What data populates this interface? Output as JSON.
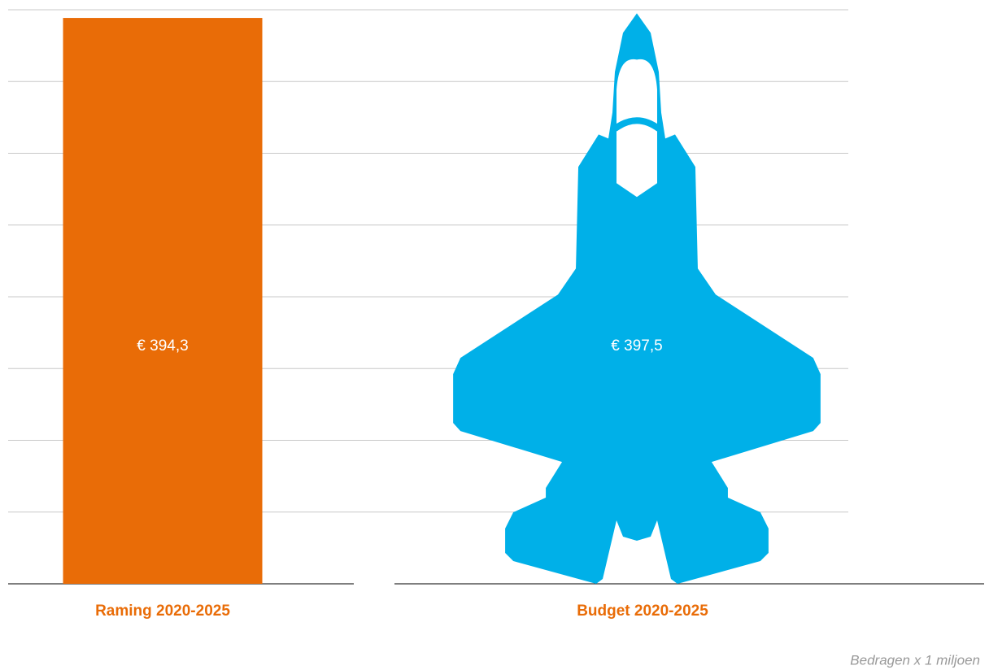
{
  "chart_data": {
    "type": "bar",
    "categories": [
      "Raming 2020-2025",
      "Budget 2020-2025"
    ],
    "values": [
      394.3,
      397.5
    ],
    "value_labels": [
      "€ 394,3",
      "€ 397,5"
    ],
    "colors": [
      "#e96c07",
      "#00b0e8"
    ],
    "ylim": [
      0,
      400
    ],
    "yticks": [
      0,
      50,
      100,
      150,
      200,
      250,
      300,
      350,
      400
    ],
    "grid": true,
    "note": "Bedragen x 1 miljoen"
  }
}
